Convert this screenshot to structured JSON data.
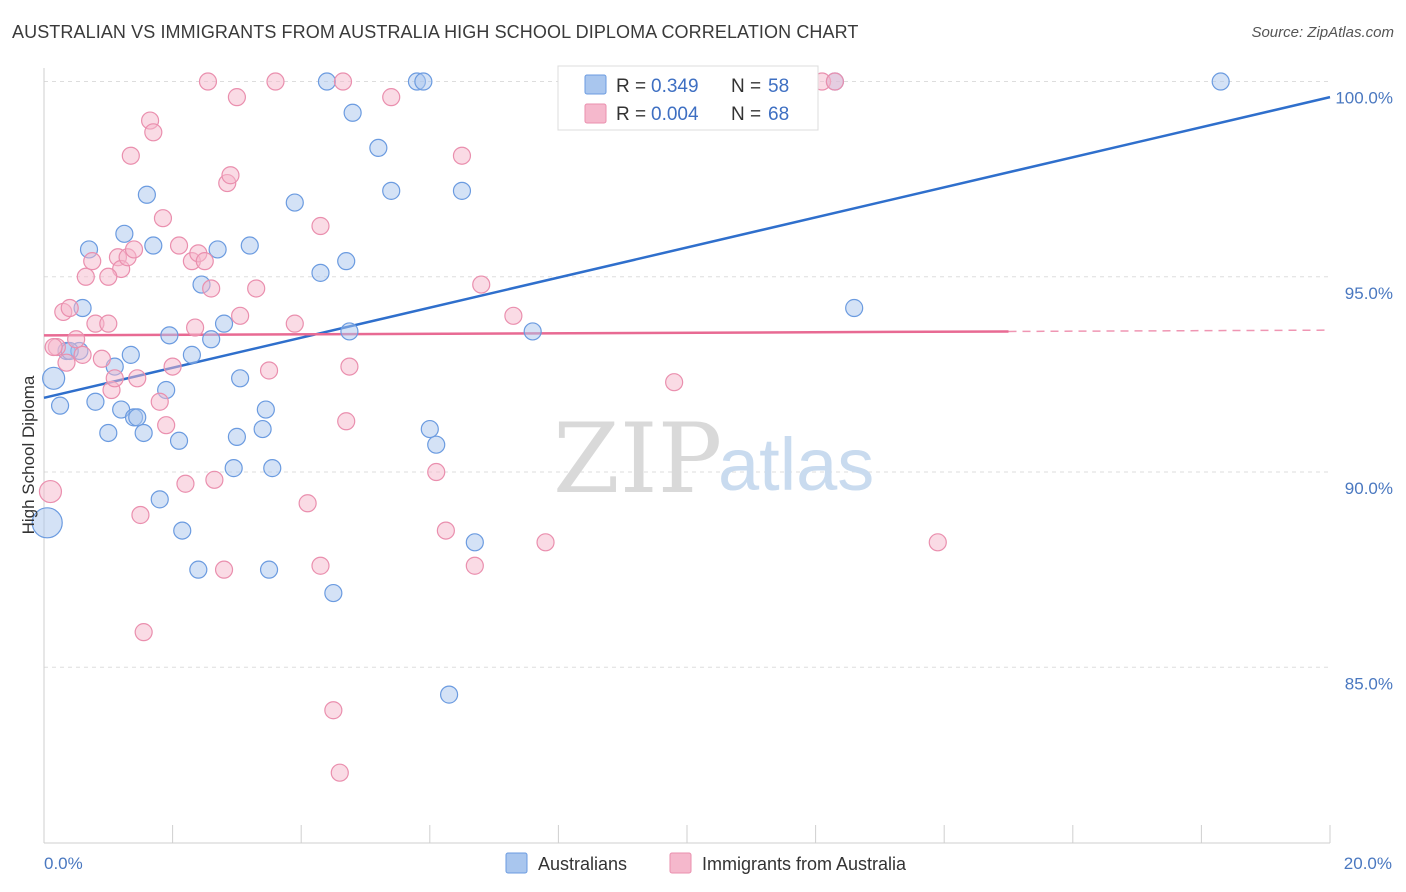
{
  "header": {
    "title": "AUSTRALIAN VS IMMIGRANTS FROM AUSTRALIA HIGH SCHOOL DIPLOMA CORRELATION CHART",
    "source": "Source: ZipAtlas.com"
  },
  "watermark": {
    "part1": "ZIP",
    "part2": "atlas"
  },
  "legend_top": {
    "rows": [
      {
        "r_label": "R =",
        "r_value": "0.349",
        "n_label": "N =",
        "n_value": "58"
      },
      {
        "r_label": "R =",
        "r_value": "0.004",
        "n_label": "N =",
        "n_value": "68"
      }
    ]
  },
  "legend_bottom": {
    "items": [
      "Australians",
      "Immigrants from Australia"
    ]
  },
  "colors": {
    "blue_fill": "#a9c6ee",
    "blue_stroke": "#6b9be0",
    "blue_line": "#2f6fcc",
    "pink_fill": "#f5b8cc",
    "pink_stroke": "#ea8fae",
    "pink_line": "#e86a93",
    "grid": "#dddddd",
    "tick_text": "#4a78c0"
  },
  "chart_data": {
    "type": "scatter",
    "title": "AUSTRALIAN VS IMMIGRANTS FROM AUSTRALIA HIGH SCHOOL DIPLOMA CORRELATION CHART",
    "xlabel": "",
    "ylabel": "High School Diploma",
    "xlim": [
      0,
      20
    ],
    "ylim": [
      80.5,
      100.5
    ],
    "x_tick_labels": [
      "0.0%",
      "20.0%"
    ],
    "y_ticks": [
      85,
      90,
      95,
      100
    ],
    "y_tick_labels": [
      "85.0%",
      "90.0%",
      "95.0%",
      "100.0%"
    ],
    "grid": true,
    "legend_placement": "top-center",
    "series": [
      {
        "name": "Australians",
        "color": "#a9c6ee",
        "trend": {
          "x": [
            0,
            20
          ],
          "y": [
            91.9,
            99.6
          ]
        },
        "points": [
          {
            "x": 0.15,
            "y": 92.4,
            "s": "l"
          },
          {
            "x": 0.25,
            "y": 91.7
          },
          {
            "x": 0.6,
            "y": 94.2
          },
          {
            "x": 0.7,
            "y": 95.7
          },
          {
            "x": 0.35,
            "y": 93.1
          },
          {
            "x": 0.55,
            "y": 93.1
          },
          {
            "x": 0.8,
            "y": 91.8
          },
          {
            "x": 1.0,
            "y": 91.0
          },
          {
            "x": 1.1,
            "y": 92.7
          },
          {
            "x": 1.2,
            "y": 91.6
          },
          {
            "x": 1.25,
            "y": 96.1
          },
          {
            "x": 1.35,
            "y": 93.0
          },
          {
            "x": 1.4,
            "y": 91.4
          },
          {
            "x": 1.45,
            "y": 91.4
          },
          {
            "x": 1.55,
            "y": 91.0
          },
          {
            "x": 1.6,
            "y": 97.1
          },
          {
            "x": 1.7,
            "y": 95.8
          },
          {
            "x": 1.8,
            "y": 89.3
          },
          {
            "x": 1.9,
            "y": 92.1
          },
          {
            "x": 1.95,
            "y": 93.5
          },
          {
            "x": 2.1,
            "y": 90.8
          },
          {
            "x": 2.15,
            "y": 88.5
          },
          {
            "x": 2.3,
            "y": 93.0
          },
          {
            "x": 2.4,
            "y": 87.5
          },
          {
            "x": 2.45,
            "y": 94.8
          },
          {
            "x": 2.6,
            "y": 93.4
          },
          {
            "x": 2.7,
            "y": 95.7
          },
          {
            "x": 2.8,
            "y": 93.8
          },
          {
            "x": 2.95,
            "y": 90.1
          },
          {
            "x": 3.0,
            "y": 90.9
          },
          {
            "x": 3.05,
            "y": 92.4
          },
          {
            "x": 3.2,
            "y": 95.8
          },
          {
            "x": 3.4,
            "y": 91.1
          },
          {
            "x": 3.45,
            "y": 91.6
          },
          {
            "x": 3.5,
            "y": 87.5
          },
          {
            "x": 3.55,
            "y": 90.1
          },
          {
            "x": 3.9,
            "y": 96.9
          },
          {
            "x": 4.3,
            "y": 95.1
          },
          {
            "x": 4.4,
            "y": 100.0
          },
          {
            "x": 4.5,
            "y": 86.9
          },
          {
            "x": 4.7,
            "y": 95.4
          },
          {
            "x": 4.75,
            "y": 93.6
          },
          {
            "x": 4.8,
            "y": 99.2
          },
          {
            "x": 5.2,
            "y": 98.3
          },
          {
            "x": 5.4,
            "y": 97.2
          },
          {
            "x": 5.8,
            "y": 100.0
          },
          {
            "x": 5.9,
            "y": 100.0
          },
          {
            "x": 6.0,
            "y": 91.1
          },
          {
            "x": 6.1,
            "y": 90.7
          },
          {
            "x": 6.3,
            "y": 84.3
          },
          {
            "x": 6.5,
            "y": 97.2
          },
          {
            "x": 6.7,
            "y": 88.2
          },
          {
            "x": 7.6,
            "y": 93.6
          },
          {
            "x": 12.3,
            "y": 100.0
          },
          {
            "x": 12.6,
            "y": 94.2
          },
          {
            "x": 18.3,
            "y": 100.0
          },
          {
            "x": 0.05,
            "y": 88.7,
            "s": "xl"
          },
          {
            "x": 0.4,
            "y": 93.1
          }
        ]
      },
      {
        "name": "Immigrants from Australia",
        "color": "#f5b8cc",
        "trend": {
          "x": [
            0,
            15
          ],
          "y": [
            93.5,
            93.6
          ],
          "dashed_to": 20
        },
        "points": [
          {
            "x": 0.1,
            "y": 89.5,
            "s": "l"
          },
          {
            "x": 0.2,
            "y": 93.2
          },
          {
            "x": 0.3,
            "y": 94.1
          },
          {
            "x": 0.35,
            "y": 92.8
          },
          {
            "x": 0.4,
            "y": 94.2
          },
          {
            "x": 0.5,
            "y": 93.4
          },
          {
            "x": 0.6,
            "y": 93.0
          },
          {
            "x": 0.65,
            "y": 95.0
          },
          {
            "x": 0.75,
            "y": 95.4
          },
          {
            "x": 0.8,
            "y": 93.8
          },
          {
            "x": 0.9,
            "y": 92.9
          },
          {
            "x": 1.0,
            "y": 93.8
          },
          {
            "x": 1.05,
            "y": 92.1
          },
          {
            "x": 1.1,
            "y": 92.4
          },
          {
            "x": 1.15,
            "y": 95.5
          },
          {
            "x": 1.2,
            "y": 95.2
          },
          {
            "x": 1.3,
            "y": 95.5
          },
          {
            "x": 1.35,
            "y": 98.1
          },
          {
            "x": 1.4,
            "y": 95.7
          },
          {
            "x": 1.45,
            "y": 92.4
          },
          {
            "x": 1.5,
            "y": 88.9
          },
          {
            "x": 1.55,
            "y": 85.9
          },
          {
            "x": 1.65,
            "y": 99.0
          },
          {
            "x": 1.7,
            "y": 98.7
          },
          {
            "x": 1.8,
            "y": 91.8
          },
          {
            "x": 1.85,
            "y": 96.5
          },
          {
            "x": 1.9,
            "y": 91.2
          },
          {
            "x": 2.0,
            "y": 92.7
          },
          {
            "x": 2.1,
            "y": 95.8
          },
          {
            "x": 2.2,
            "y": 89.7
          },
          {
            "x": 2.3,
            "y": 95.4
          },
          {
            "x": 2.35,
            "y": 93.7
          },
          {
            "x": 2.4,
            "y": 95.6
          },
          {
            "x": 2.5,
            "y": 95.4
          },
          {
            "x": 2.55,
            "y": 100.0
          },
          {
            "x": 2.6,
            "y": 94.7
          },
          {
            "x": 2.65,
            "y": 89.8
          },
          {
            "x": 2.8,
            "y": 87.5
          },
          {
            "x": 2.85,
            "y": 97.4
          },
          {
            "x": 2.9,
            "y": 97.6
          },
          {
            "x": 3.0,
            "y": 99.6
          },
          {
            "x": 3.05,
            "y": 94.0
          },
          {
            "x": 3.3,
            "y": 94.7
          },
          {
            "x": 3.5,
            "y": 92.6
          },
          {
            "x": 3.6,
            "y": 100.0
          },
          {
            "x": 3.9,
            "y": 93.8
          },
          {
            "x": 4.1,
            "y": 89.2
          },
          {
            "x": 4.3,
            "y": 96.3
          },
          {
            "x": 4.3,
            "y": 87.6
          },
          {
            "x": 4.5,
            "y": 83.9
          },
          {
            "x": 4.6,
            "y": 82.3
          },
          {
            "x": 4.65,
            "y": 100.0
          },
          {
            "x": 4.7,
            "y": 91.3
          },
          {
            "x": 4.75,
            "y": 92.7
          },
          {
            "x": 5.4,
            "y": 99.6
          },
          {
            "x": 6.1,
            "y": 90.0
          },
          {
            "x": 6.25,
            "y": 88.5
          },
          {
            "x": 6.5,
            "y": 98.1
          },
          {
            "x": 6.7,
            "y": 87.6
          },
          {
            "x": 6.8,
            "y": 94.8
          },
          {
            "x": 7.3,
            "y": 94.0
          },
          {
            "x": 7.8,
            "y": 88.2
          },
          {
            "x": 9.8,
            "y": 92.3
          },
          {
            "x": 12.1,
            "y": 100.0
          },
          {
            "x": 12.3,
            "y": 100.0
          },
          {
            "x": 13.9,
            "y": 88.2
          },
          {
            "x": 0.15,
            "y": 93.2
          },
          {
            "x": 1.0,
            "y": 95.0
          }
        ]
      }
    ]
  }
}
